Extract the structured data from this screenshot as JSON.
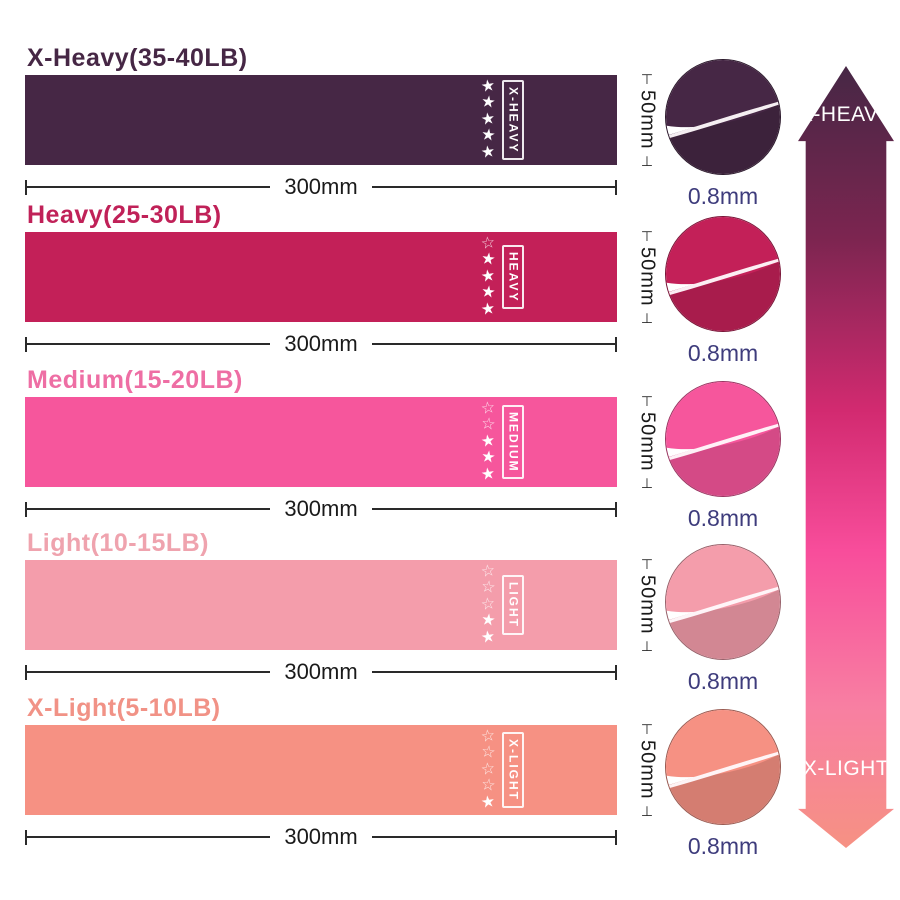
{
  "bands": [
    {
      "title": "X-Heavy(35-40LB)",
      "label": "X-HEAVY",
      "color": "#462745",
      "title_color": "#462745",
      "stars_filled": 5,
      "stars_total": 5,
      "length": "300mm",
      "width": "50mm",
      "thickness": "0.8mm"
    },
    {
      "title": "Heavy(25-30LB)",
      "label": "HEAVY",
      "color": "#c32058",
      "title_color": "#c02158",
      "stars_filled": 4,
      "stars_total": 5,
      "length": "300mm",
      "width": "50mm",
      "thickness": "0.8mm"
    },
    {
      "title": "Medium(15-20LB)",
      "label": "MEDIUM",
      "color": "#f6569c",
      "title_color": "#ee6ea4",
      "stars_filled": 3,
      "stars_total": 5,
      "length": "300mm",
      "width": "50mm",
      "thickness": "0.8mm"
    },
    {
      "title": "Light(10-15LB)",
      "label": "LIGHT",
      "color": "#f49dab",
      "title_color": "#efa3ae",
      "stars_filled": 2,
      "stars_total": 5,
      "length": "300mm",
      "width": "50mm",
      "thickness": "0.8mm"
    },
    {
      "title": "X-Light(5-10LB)",
      "label": "X-LIGHT",
      "color": "#f69183",
      "title_color": "#f19286",
      "stars_filled": 1,
      "stars_total": 5,
      "length": "300mm",
      "width": "50mm",
      "thickness": "0.8mm"
    }
  ],
  "scale_arrow": {
    "top_label": "X-HEAVY",
    "bottom_label": "X-LIGHT",
    "gradient": [
      "#462745",
      "#7c2550",
      "#d22a70",
      "#f84d9b",
      "#f87fa2",
      "#f69183"
    ]
  },
  "ui_colors": {
    "dimension_text": "#1a1a1a",
    "thickness_text": "#3e3c7c",
    "star": "#ffffff"
  }
}
